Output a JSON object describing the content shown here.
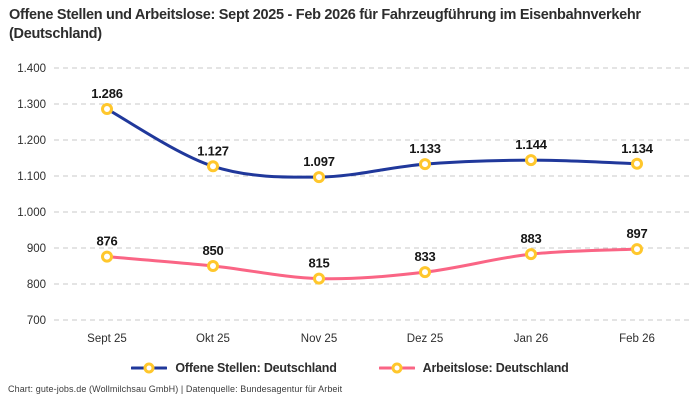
{
  "title": "Offene Stellen und Arbeitslose: Sept 2025 - Feb 2026 für Fahrzeugführung im Eisenbahnverkehr (Deutschland)",
  "footer": "Chart: gute-jobs.de (Wollmilchsau GmbH) | Datenquelle: Bundesagentur für Arbeit",
  "colors": {
    "blue": "#20389b",
    "pink": "#fa6585",
    "marker_ring": "#ffc72c",
    "marker_fill": "#ffffff",
    "grid": "#c9c9c9",
    "text": "#2e2e2e",
    "label": "#161616"
  },
  "chart_data": {
    "type": "line",
    "title": "Offene Stellen und Arbeitslose: Sept 2025 - Feb 2026 für Fahrzeugführung im Eisenbahnverkehr (Deutschland)",
    "categories": [
      "Sept 25",
      "Okt 25",
      "Nov 25",
      "Dez 25",
      "Jan 26",
      "Feb 26"
    ],
    "series": [
      {
        "id": "offene-stellen",
        "name": "Offene Stellen: Deutschland",
        "values": [
          1286,
          1127,
          1097,
          1133,
          1144,
          1134
        ],
        "labels": [
          "1.286",
          "1.127",
          "1.097",
          "1.133",
          "1.144",
          "1.134"
        ],
        "color_key": "blue"
      },
      {
        "id": "arbeitslose",
        "name": "Arbeitslose: Deutschland",
        "values": [
          876,
          850,
          815,
          833,
          883,
          897
        ],
        "labels": [
          "876",
          "850",
          "815",
          "833",
          "883",
          "897"
        ],
        "color_key": "pink"
      }
    ],
    "ylim": [
      700,
      1400
    ],
    "yticks": {
      "values": [
        700,
        800,
        900,
        1000,
        1100,
        1200,
        1300,
        1400
      ],
      "labels": [
        "700",
        "800",
        "900",
        "1.000",
        "1.100",
        "1.200",
        "1.300",
        "1.400"
      ]
    },
    "grid": true,
    "legend_position": "bottom",
    "marker": "open-circle"
  }
}
